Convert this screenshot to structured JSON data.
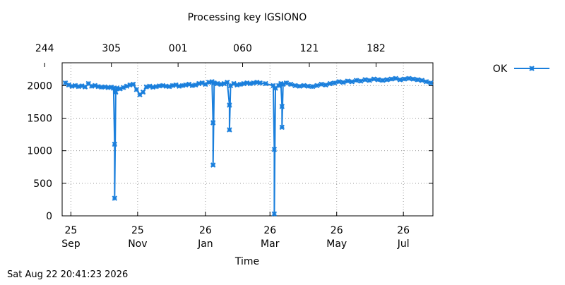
{
  "chart_data": {
    "type": "line",
    "title": "Processing key IGSIONO",
    "xlabel": "Time",
    "ylabel": "",
    "ylim": [
      0,
      2350
    ],
    "y_ticks": [
      0,
      500,
      1000,
      1500,
      2000
    ],
    "x_start_date": "2025-09-17",
    "x_end_date": "2026-08-22",
    "x_bottom_ticks": [
      {
        "date": "2025-09-25",
        "line1": "25",
        "line2": "Sep"
      },
      {
        "date": "2025-11-25",
        "line1": "25",
        "line2": "Nov"
      },
      {
        "date": "2026-01-26",
        "line1": "26",
        "line2": "Jan"
      },
      {
        "date": "2026-03-26",
        "line1": "26",
        "line2": "Mar"
      },
      {
        "date": "2026-05-26",
        "line1": "26",
        "line2": "May"
      },
      {
        "date": "2026-07-26",
        "line1": "26",
        "line2": "Jul"
      }
    ],
    "x_top_ticks": [
      {
        "date": "2025-09-01",
        "label": "244"
      },
      {
        "date": "2025-11-01",
        "label": "305"
      },
      {
        "date": "2026-01-01",
        "label": "001"
      },
      {
        "date": "2026-03-01",
        "label": "060"
      },
      {
        "date": "2026-05-01",
        "label": "121"
      },
      {
        "date": "2026-07-01",
        "label": "182"
      }
    ],
    "grid": true,
    "legend_position": "right",
    "series": [
      {
        "name": "OK",
        "color": "#1a7fdc",
        "marker": "x",
        "points": [
          [
            "2025-09-20",
            2040
          ],
          [
            "2025-09-23",
            2010
          ],
          [
            "2025-09-26",
            1990
          ],
          [
            "2025-09-29",
            2000
          ],
          [
            "2025-10-02",
            1985
          ],
          [
            "2025-10-05",
            1995
          ],
          [
            "2025-10-08",
            1980
          ],
          [
            "2025-10-11",
            2030
          ],
          [
            "2025-10-14",
            1990
          ],
          [
            "2025-10-17",
            2000
          ],
          [
            "2025-10-20",
            1985
          ],
          [
            "2025-10-23",
            1975
          ],
          [
            "2025-10-26",
            1980
          ],
          [
            "2025-10-29",
            1970
          ],
          [
            "2025-11-01",
            1975
          ],
          [
            "2025-11-03",
            1960
          ],
          [
            "2025-11-04",
            1100
          ],
          [
            "2025-11-04",
            270
          ],
          [
            "2025-11-05",
            1900
          ],
          [
            "2025-11-06",
            1960
          ],
          [
            "2025-11-09",
            1950
          ],
          [
            "2025-11-12",
            1970
          ],
          [
            "2025-11-15",
            1990
          ],
          [
            "2025-11-18",
            2010
          ],
          [
            "2025-11-21",
            2020
          ],
          [
            "2025-11-24",
            1940
          ],
          [
            "2025-11-27",
            1860
          ],
          [
            "2025-11-30",
            1900
          ],
          [
            "2025-12-03",
            1980
          ],
          [
            "2025-12-06",
            1990
          ],
          [
            "2025-12-09",
            1975
          ],
          [
            "2025-12-12",
            1985
          ],
          [
            "2025-12-15",
            1995
          ],
          [
            "2025-12-18",
            2000
          ],
          [
            "2025-12-21",
            1990
          ],
          [
            "2025-12-24",
            1985
          ],
          [
            "2025-12-27",
            2000
          ],
          [
            "2025-12-30",
            2010
          ],
          [
            "2026-01-02",
            1990
          ],
          [
            "2026-01-05",
            2000
          ],
          [
            "2026-01-08",
            2010
          ],
          [
            "2026-01-11",
            2020
          ],
          [
            "2026-01-14",
            2000
          ],
          [
            "2026-01-17",
            2010
          ],
          [
            "2026-01-20",
            2030
          ],
          [
            "2026-01-23",
            2040
          ],
          [
            "2026-01-26",
            2020
          ],
          [
            "2026-01-29",
            2050
          ],
          [
            "2026-02-01",
            2060
          ],
          [
            "2026-02-02",
            1430
          ],
          [
            "2026-02-02",
            780
          ],
          [
            "2026-02-03",
            2040
          ],
          [
            "2026-02-06",
            2030
          ],
          [
            "2026-02-09",
            2020
          ],
          [
            "2026-02-12",
            2030
          ],
          [
            "2026-02-15",
            2050
          ],
          [
            "2026-02-17",
            1700
          ],
          [
            "2026-02-17",
            1320
          ],
          [
            "2026-02-18",
            2000
          ],
          [
            "2026-02-21",
            2030
          ],
          [
            "2026-02-24",
            2010
          ],
          [
            "2026-02-27",
            2020
          ],
          [
            "2026-03-02",
            2030
          ],
          [
            "2026-03-05",
            2040
          ],
          [
            "2026-03-08",
            2030
          ],
          [
            "2026-03-11",
            2040
          ],
          [
            "2026-03-14",
            2050
          ],
          [
            "2026-03-17",
            2040
          ],
          [
            "2026-03-22",
            2030
          ],
          [
            "2026-03-29",
            2000
          ],
          [
            "2026-03-30",
            1020
          ],
          [
            "2026-03-30",
            30
          ],
          [
            "2026-03-31",
            1960
          ],
          [
            "2026-04-03",
            2000
          ],
          [
            "2026-04-05",
            2030
          ],
          [
            "2026-04-06",
            1680
          ],
          [
            "2026-04-06",
            1360
          ],
          [
            "2026-04-07",
            2020
          ],
          [
            "2026-04-10",
            2040
          ],
          [
            "2026-04-14",
            2020
          ],
          [
            "2026-04-18",
            2000
          ],
          [
            "2026-04-22",
            1990
          ],
          [
            "2026-04-26",
            2000
          ],
          [
            "2026-04-30",
            1990
          ],
          [
            "2026-05-04",
            1985
          ],
          [
            "2026-05-08",
            2000
          ],
          [
            "2026-05-12",
            2020
          ],
          [
            "2026-05-16",
            2010
          ],
          [
            "2026-05-20",
            2030
          ],
          [
            "2026-05-24",
            2040
          ],
          [
            "2026-05-28",
            2060
          ],
          [
            "2026-06-01",
            2050
          ],
          [
            "2026-06-05",
            2070
          ],
          [
            "2026-06-09",
            2060
          ],
          [
            "2026-06-13",
            2080
          ],
          [
            "2026-06-17",
            2070
          ],
          [
            "2026-06-21",
            2090
          ],
          [
            "2026-06-25",
            2080
          ],
          [
            "2026-06-29",
            2100
          ],
          [
            "2026-07-03",
            2090
          ],
          [
            "2026-07-07",
            2080
          ],
          [
            "2026-07-11",
            2090
          ],
          [
            "2026-07-15",
            2100
          ],
          [
            "2026-07-19",
            2110
          ],
          [
            "2026-07-23",
            2090
          ],
          [
            "2026-07-27",
            2100
          ],
          [
            "2026-07-31",
            2110
          ],
          [
            "2026-08-04",
            2100
          ],
          [
            "2026-08-08",
            2090
          ],
          [
            "2026-08-12",
            2080
          ],
          [
            "2026-08-16",
            2060
          ],
          [
            "2026-08-20",
            2040
          ]
        ]
      }
    ]
  },
  "timestamp": "Sat Aug 22 20:41:23 2026"
}
